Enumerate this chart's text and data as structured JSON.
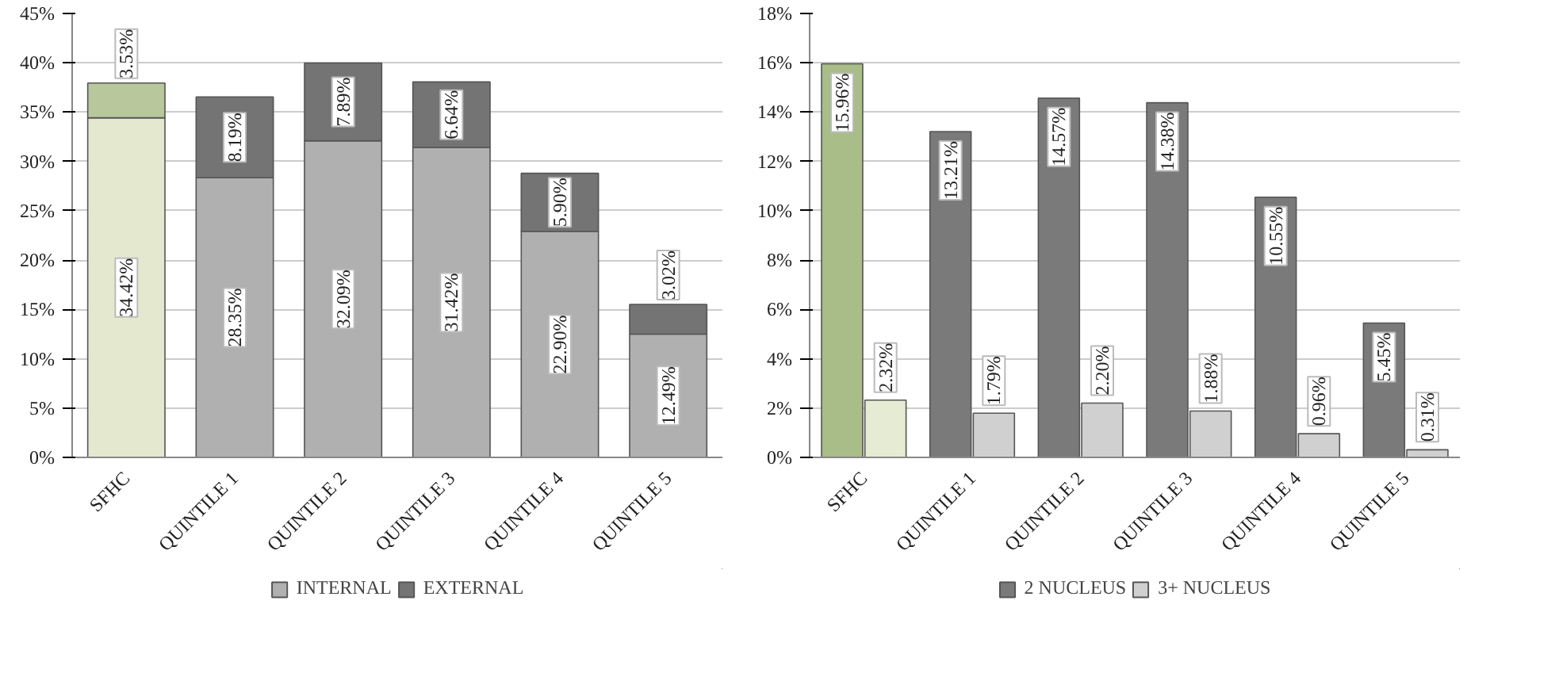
{
  "chart_data": [
    {
      "type": "bar",
      "stacked": true,
      "categories": [
        "SFHC",
        "QUINTILE 1",
        "QUINTILE 2",
        "QUINTILE 3",
        "QUINTILE 4",
        "QUINTILE 5"
      ],
      "ylim": [
        0,
        45
      ],
      "yticks": [
        {
          "value": 0,
          "label": "0%"
        },
        {
          "value": 5,
          "label": "5%"
        },
        {
          "value": 10,
          "label": "10%"
        },
        {
          "value": 15,
          "label": "15%"
        },
        {
          "value": 20,
          "label": "20%"
        },
        {
          "value": 25,
          "label": "25%"
        },
        {
          "value": 30,
          "label": "30%"
        },
        {
          "value": 35,
          "label": "35%"
        },
        {
          "value": 40,
          "label": "40%"
        },
        {
          "value": 45,
          "label": "45%"
        }
      ],
      "grid": "y",
      "legend": "bottom",
      "series": [
        {
          "name": "INTERNAL",
          "color": "#b0b0b0",
          "colors": [
            "#e3e8cf",
            "#b0b0b0",
            "#b0b0b0",
            "#b0b0b0",
            "#b0b0b0",
            "#b0b0b0"
          ],
          "values": [
            34.42,
            28.35,
            32.09,
            31.42,
            22.9,
            12.49
          ],
          "value_labels": [
            "34.42%",
            "28.35%",
            "32.09%",
            "31.42%",
            "22.90%",
            "12.49%"
          ]
        },
        {
          "name": "EXTERNAL",
          "color": "#747474",
          "colors": [
            "#b8c79c",
            "#747474",
            "#747474",
            "#747474",
            "#747474",
            "#747474"
          ],
          "values": [
            3.53,
            8.19,
            7.89,
            6.64,
            5.9,
            3.02
          ],
          "value_labels": [
            "3.53%",
            "8.19%",
            "7.89%",
            "6.64%",
            "5.90%",
            "3.02%"
          ]
        }
      ]
    },
    {
      "type": "bar",
      "categories": [
        "SFHC",
        "QUINTILE 1",
        "QUINTILE 2",
        "QUINTILE 3",
        "QUINTILE 4",
        "QUINTILE 5"
      ],
      "ylim": [
        0,
        18
      ],
      "yticks": [
        {
          "value": 0,
          "label": "0%"
        },
        {
          "value": 2,
          "label": "2%"
        },
        {
          "value": 4,
          "label": "4%"
        },
        {
          "value": 6,
          "label": "6%"
        },
        {
          "value": 8,
          "label": "8%"
        },
        {
          "value": 10,
          "label": "10%"
        },
        {
          "value": 12,
          "label": "12%"
        },
        {
          "value": 14,
          "label": "14%"
        },
        {
          "value": 16,
          "label": "16%"
        },
        {
          "value": 18,
          "label": "18%"
        }
      ],
      "grid": "y",
      "legend": "bottom",
      "series": [
        {
          "name": "2 NUCLEUS",
          "color": "#7a7a7a",
          "colors": [
            "#a9bd88",
            "#7a7a7a",
            "#7a7a7a",
            "#7a7a7a",
            "#7a7a7a",
            "#7a7a7a"
          ],
          "values": [
            15.96,
            13.21,
            14.57,
            14.38,
            10.55,
            5.45
          ],
          "value_labels": [
            "15.96%",
            "13.21%",
            "14.57%",
            "14.38%",
            "10.55%",
            "5.45%"
          ]
        },
        {
          "name": "3+ NUCLEUS",
          "color": "#d0d0d0",
          "colors": [
            "#e6ebd3",
            "#d0d0d0",
            "#d0d0d0",
            "#d0d0d0",
            "#d0d0d0",
            "#d0d0d0"
          ],
          "values": [
            2.32,
            1.79,
            2.2,
            1.88,
            0.96,
            0.31
          ],
          "value_labels": [
            "2.32%",
            "1.79%",
            "2.20%",
            "1.88%",
            "0.96%",
            "0.31%"
          ]
        }
      ]
    }
  ]
}
